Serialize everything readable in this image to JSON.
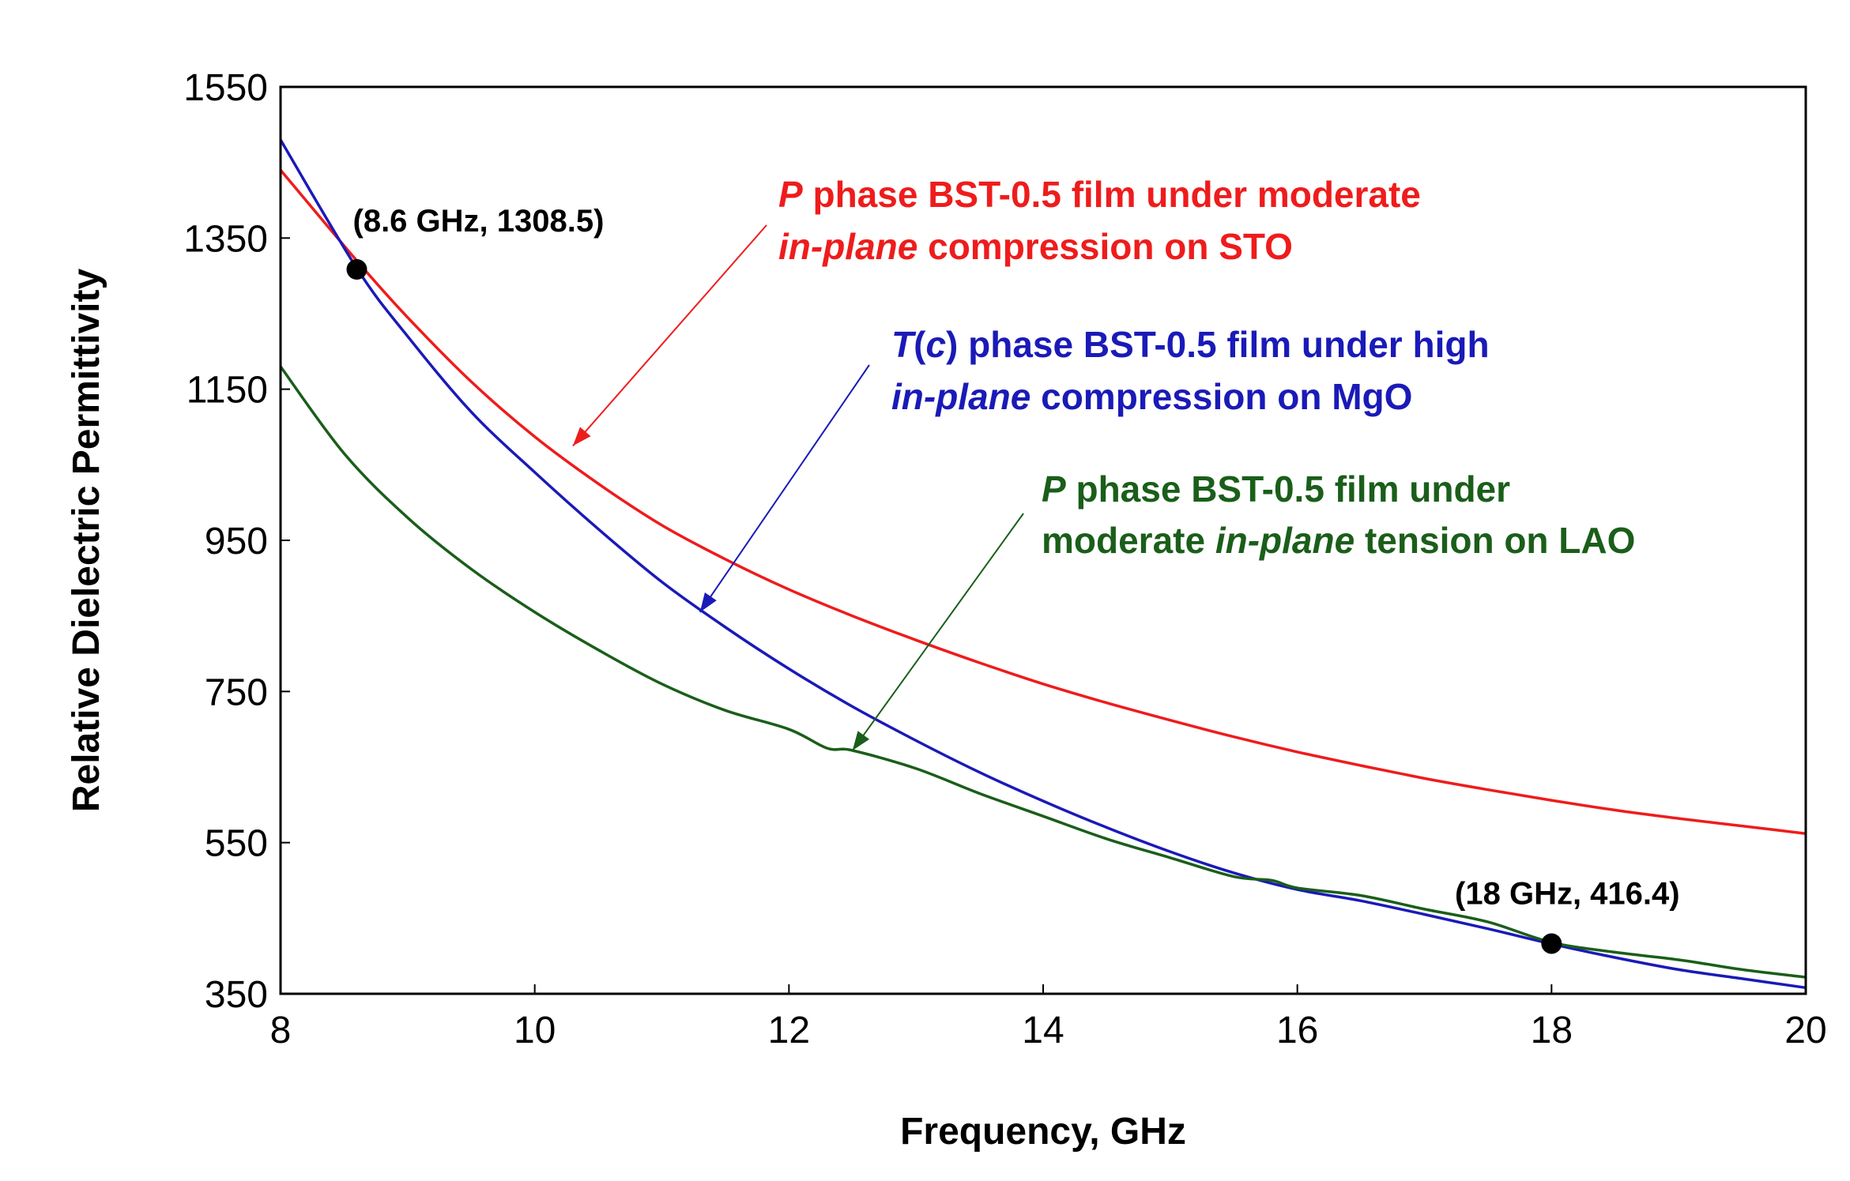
{
  "chart_data": {
    "type": "line",
    "title": "",
    "xlabel": "Frequency, GHz",
    "ylabel": "Relative Dielectric Permittivity",
    "xlim": [
      8,
      20
    ],
    "ylim": [
      350,
      1550
    ],
    "xticks": [
      8,
      10,
      12,
      14,
      16,
      18,
      20
    ],
    "yticks": [
      350,
      550,
      750,
      950,
      1150,
      1350,
      1550
    ],
    "grid": false,
    "series": [
      {
        "name": "STO",
        "color": "#ee1c1c",
        "x": [
          8,
          8.6,
          9,
          9.5,
          10,
          10.5,
          11,
          11.5,
          12,
          12.5,
          13,
          13.5,
          14,
          14.5,
          15,
          15.5,
          16,
          16.5,
          17,
          17.5,
          18,
          18.5,
          19,
          19.5,
          20
        ],
        "y": [
          1440,
          1320,
          1245,
          1160,
          1087,
          1025,
          970,
          925,
          885,
          850,
          818,
          788,
          760,
          735,
          712,
          690,
          670,
          652,
          635,
          620,
          606,
          593,
          582,
          572,
          562
        ]
      },
      {
        "name": "MgO",
        "color": "#1a1ab8",
        "x": [
          8,
          8.6,
          9,
          9.5,
          10,
          10.5,
          11,
          11.5,
          12,
          12.5,
          13,
          13.5,
          14,
          14.5,
          15,
          15.5,
          16,
          16.5,
          17,
          17.5,
          18,
          18.5,
          19,
          19.5,
          20
        ],
        "y": [
          1480,
          1310,
          1220,
          1120,
          1040,
          965,
          895,
          835,
          780,
          730,
          685,
          643,
          605,
          570,
          538,
          510,
          488,
          473,
          455,
          436,
          416,
          398,
          382,
          370,
          358
        ]
      },
      {
        "name": "LAO",
        "color": "#1a5e1a",
        "x": [
          8,
          8.5,
          9,
          9.5,
          10,
          10.5,
          11,
          11.5,
          12,
          12.3,
          12.5,
          13,
          13.5,
          14,
          14.5,
          15,
          15.5,
          15.8,
          16,
          16.5,
          17,
          17.5,
          18,
          18.5,
          19,
          19.5,
          20
        ],
        "y": [
          1180,
          1065,
          980,
          912,
          855,
          805,
          760,
          725,
          700,
          675,
          672,
          648,
          615,
          585,
          555,
          530,
          505,
          500,
          490,
          480,
          462,
          445,
          418,
          405,
          395,
          382,
          372
        ]
      }
    ],
    "points": [
      {
        "label": "(8.6 GHz, 1308.5)",
        "x": 8.6,
        "y": 1308.5
      },
      {
        "label": "(18 GHz, 416.4)",
        "x": 18,
        "y": 416.4
      }
    ],
    "annotations": [
      {
        "name": "STO",
        "color": "#ee1c1c",
        "line1": {
          "italic": "P",
          "rest": " phase BST-0.5 film under moderate"
        },
        "line2": {
          "italic": "in-plane",
          "rest": " compression on STO"
        },
        "arrow_to": {
          "x": 10.3,
          "y": 1075
        }
      },
      {
        "name": "MgO",
        "color": "#1a1ab8",
        "line1": {
          "italic": "T",
          "mid1": "(",
          "italic2": "c",
          "rest": ") phase BST-0.5 film under high"
        },
        "line2": {
          "italic": "in-plane",
          "rest": " compression on MgO"
        },
        "arrow_to": {
          "x": 11.3,
          "y": 855
        }
      },
      {
        "name": "LAO",
        "color": "#1a5e1a",
        "line1": {
          "italic": "P",
          "rest": " phase BST-0.5 film under"
        },
        "line2": {
          "pre": "moderate ",
          "italic": "in-plane",
          "rest": " tension on LAO"
        },
        "arrow_to": {
          "x": 12.5,
          "y": 672
        }
      }
    ]
  }
}
